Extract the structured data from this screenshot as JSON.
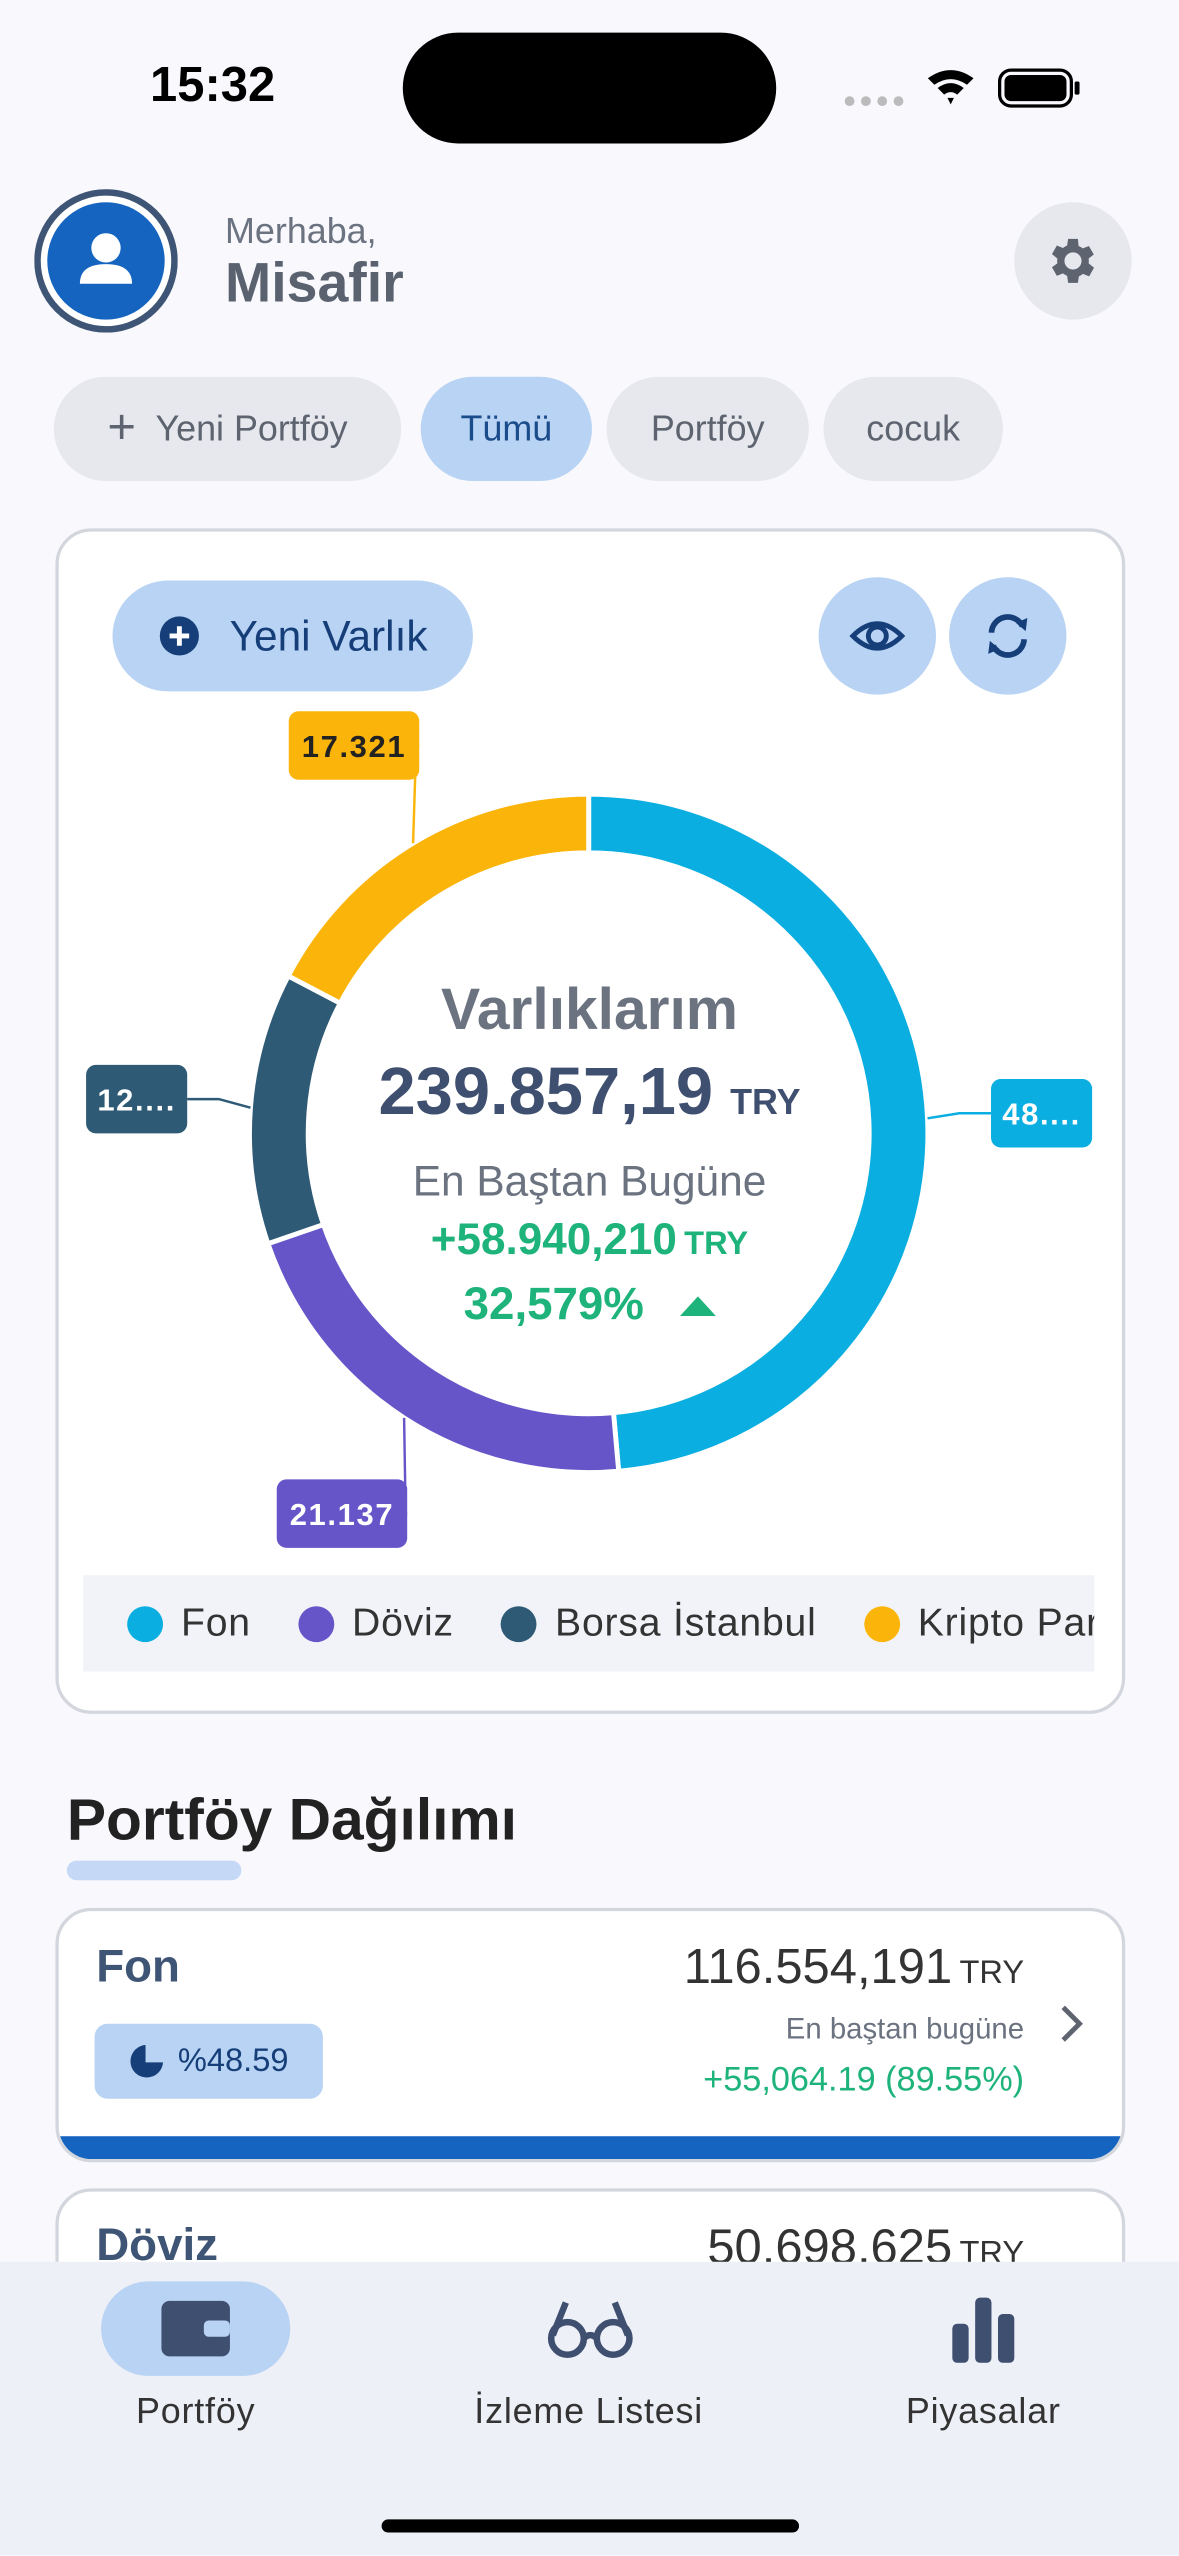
{
  "status_bar": {
    "time": "15:32"
  },
  "header": {
    "greeting": "Merhaba,",
    "name": "Misafir"
  },
  "tabs": [
    "Yeni Portföy",
    "Tümü",
    "Portföy",
    "cocuk"
  ],
  "card": {
    "new_asset_button": "Yeni Varlık"
  },
  "chart_data": {
    "type": "donut",
    "title": "Varlıklarım",
    "total": "239.857,19",
    "total_unit": "TRY",
    "subtitle": "En Baştan Bugüne",
    "change": "+58.940,210",
    "change_unit": "TRY",
    "change_percent": "32,579%",
    "categories": [
      "Fon",
      "Döviz",
      "Borsa İstanbul",
      "Kripto Para"
    ],
    "values": [
      48.59,
      21.137,
      12.952,
      17.321
    ],
    "value_labels": [
      "48....",
      "21.137",
      "12....",
      "17.321"
    ],
    "colors": [
      "#0aaee0",
      "#6655c8",
      "#2f5a75",
      "#fbb40a"
    ]
  },
  "section": {
    "title": "Portföy Dağılımı",
    "items": [
      {
        "name": "Fon",
        "share": "%48.59",
        "amount": "116.554,191",
        "unit": "TRY",
        "since_label": "En baştan bugüne",
        "change": "+55,064.19 (89.55%)"
      },
      {
        "name": "Döviz",
        "amount": "50.698,625",
        "unit": "TRY"
      }
    ]
  },
  "nav": [
    "Portföy",
    "İzleme Listesi",
    "Piyasalar"
  ]
}
